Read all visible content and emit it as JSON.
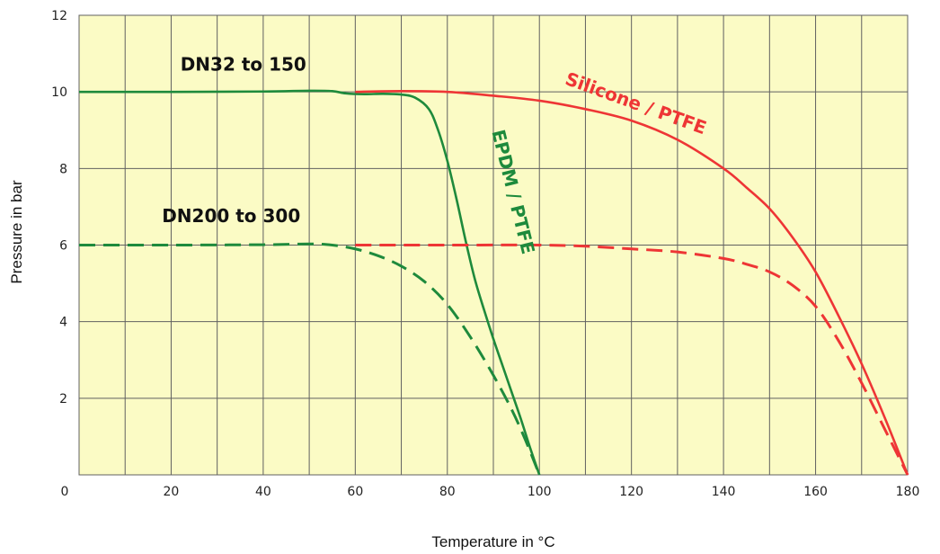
{
  "chart_data": {
    "type": "line",
    "title": "",
    "xlabel": "Temperature in °C",
    "ylabel": "Pressure in bar",
    "xlim": [
      0,
      180
    ],
    "ylim": [
      0,
      12
    ],
    "x_ticks": [
      0,
      20,
      40,
      60,
      80,
      100,
      120,
      140,
      160,
      180
    ],
    "y_ticks": [
      2,
      4,
      6,
      8,
      10,
      12
    ],
    "x_grid_step": 10,
    "y_grid_step": 2,
    "grid": true,
    "plot_background": "#fbfbc5",
    "grid_color": "#606060",
    "series": [
      {
        "key": "epdm-dn32-150",
        "color": "#1e8a3c",
        "dash": false,
        "points": [
          [
            0,
            10
          ],
          [
            20,
            10
          ],
          [
            40,
            10.01
          ],
          [
            50,
            10.03
          ],
          [
            55,
            10.02
          ],
          [
            58,
            9.96
          ],
          [
            62,
            9.94
          ],
          [
            66,
            9.95
          ],
          [
            70,
            9.93
          ],
          [
            73,
            9.85
          ],
          [
            76,
            9.55
          ],
          [
            78,
            9.0
          ],
          [
            80,
            8.2
          ],
          [
            82,
            7.2
          ],
          [
            84,
            6.1
          ],
          [
            86,
            5.1
          ],
          [
            88,
            4.3
          ],
          [
            90,
            3.55
          ],
          [
            92,
            2.85
          ],
          [
            94,
            2.15
          ],
          [
            96,
            1.45
          ],
          [
            98,
            0.7
          ],
          [
            100,
            0
          ]
        ]
      },
      {
        "key": "epdm-dn200-300",
        "color": "#1e8a3c",
        "dash": true,
        "points": [
          [
            0,
            6
          ],
          [
            20,
            6
          ],
          [
            40,
            6.01
          ],
          [
            50,
            6.03
          ],
          [
            55,
            6.0
          ],
          [
            60,
            5.9
          ],
          [
            65,
            5.72
          ],
          [
            70,
            5.45
          ],
          [
            75,
            5.05
          ],
          [
            80,
            4.45
          ],
          [
            85,
            3.6
          ],
          [
            90,
            2.6
          ],
          [
            94,
            1.7
          ],
          [
            97,
            0.9
          ],
          [
            100,
            0
          ]
        ]
      },
      {
        "key": "silicone-dn32-150",
        "color": "#ee3535",
        "dash": false,
        "points": [
          [
            60,
            10
          ],
          [
            70,
            10.02
          ],
          [
            80,
            10.0
          ],
          [
            90,
            9.9
          ],
          [
            100,
            9.77
          ],
          [
            110,
            9.55
          ],
          [
            120,
            9.25
          ],
          [
            130,
            8.75
          ],
          [
            140,
            8.0
          ],
          [
            145,
            7.5
          ],
          [
            150,
            6.95
          ],
          [
            155,
            6.2
          ],
          [
            160,
            5.3
          ],
          [
            165,
            4.15
          ],
          [
            170,
            2.9
          ],
          [
            175,
            1.5
          ],
          [
            180,
            0
          ]
        ]
      },
      {
        "key": "silicone-dn200-300",
        "color": "#ee3535",
        "dash": true,
        "points": [
          [
            60,
            6
          ],
          [
            80,
            6.0
          ],
          [
            100,
            6.0
          ],
          [
            110,
            5.97
          ],
          [
            120,
            5.9
          ],
          [
            130,
            5.82
          ],
          [
            140,
            5.65
          ],
          [
            145,
            5.5
          ],
          [
            150,
            5.3
          ],
          [
            155,
            4.95
          ],
          [
            160,
            4.4
          ],
          [
            165,
            3.5
          ],
          [
            170,
            2.4
          ],
          [
            175,
            1.2
          ],
          [
            180,
            0
          ]
        ]
      }
    ],
    "annotations": [
      {
        "key": "dn32",
        "text": "DN32 to 150",
        "x": 22,
        "y": 10.55,
        "angle": 0,
        "color": "#111111"
      },
      {
        "key": "dn200",
        "text": "DN200 to 300",
        "x": 18,
        "y": 6.6,
        "angle": 0,
        "color": "#111111"
      },
      {
        "key": "silicone",
        "text": "Silicone / PTFE",
        "x": 120.5,
        "y": 9.55,
        "angle": 20,
        "color": "#ee3535"
      },
      {
        "key": "epdm",
        "text": "EPDM / PTFE",
        "x": 93,
        "y": 7.35,
        "angle": 76,
        "color": "#1e8a3c"
      }
    ]
  }
}
